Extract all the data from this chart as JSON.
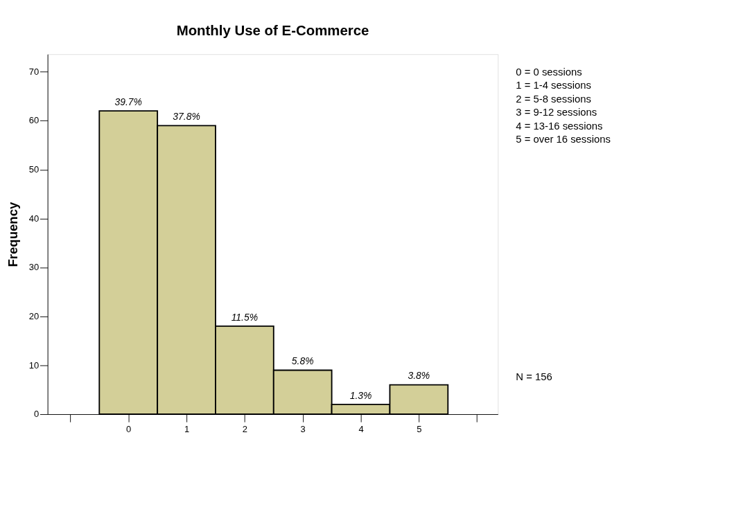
{
  "chart_data": {
    "type": "histogram",
    "title": "Monthly Use of E-Commerce",
    "ylabel": "Frequency",
    "bins": [
      -0.5,
      0.5,
      1.5,
      2.5,
      3.5,
      4.5,
      5.5
    ],
    "values": [
      62,
      59,
      18,
      9,
      2,
      6
    ],
    "color": "#d3cf98",
    "xlim": [
      -1.39,
      6.36
    ],
    "xticks": [
      {
        "value": -1,
        "label": null
      },
      0,
      1,
      2,
      3,
      4,
      5,
      {
        "value": 6,
        "label": null
      }
    ],
    "ylim": [
      0,
      73.6
    ],
    "yticks": [
      0,
      10,
      20,
      30,
      40,
      50,
      60,
      70
    ],
    "grid": false,
    "annotations": [
      {
        "text": "39.7%",
        "x": 0,
        "y": 62
      },
      {
        "text": "37.8%",
        "x": 1,
        "y": 59
      },
      {
        "text": "11.5%",
        "x": 2,
        "y": 18
      },
      {
        "text": "5.8%",
        "x": 3,
        "y": 9
      },
      {
        "text": "1.3%",
        "x": 4,
        "y": 2
      },
      {
        "text": "3.8%",
        "x": 5,
        "y": 6
      },
      "0 = 0 sessions",
      "1 = 1-4 sessions",
      "2 = 5-8 sessions",
      "3 = 9-12 sessions",
      "4 = 13-16 sessions",
      "5 = over 16 sessions",
      "N = 156"
    ]
  }
}
